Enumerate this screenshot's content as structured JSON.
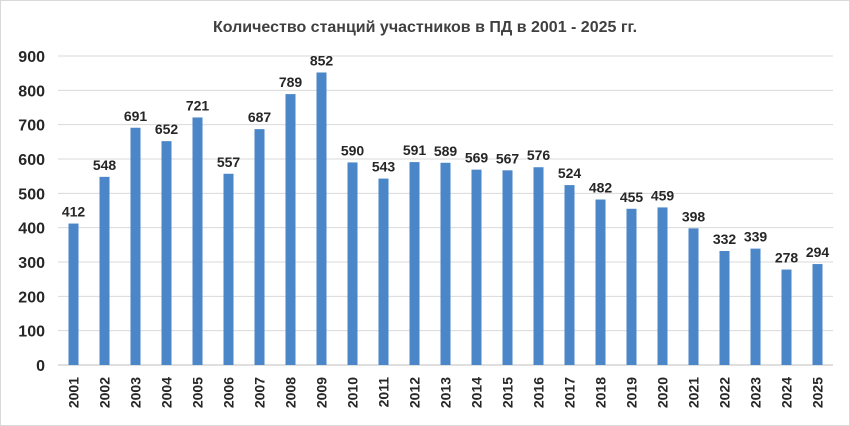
{
  "chart_data": {
    "type": "bar",
    "title": "Количество станций участников в ПД в 2001 - 2025 гг.",
    "xlabel": "",
    "ylabel": "",
    "ylim": [
      0,
      900
    ],
    "yticks": [
      0,
      100,
      200,
      300,
      400,
      500,
      600,
      700,
      800,
      900
    ],
    "grid": true,
    "legend": "none",
    "bar_color": "#4a86c8",
    "categories": [
      "2001",
      "2002",
      "2003",
      "2004",
      "2005",
      "2006",
      "2007",
      "2008",
      "2009",
      "2010",
      "2011",
      "2012",
      "2013",
      "2014",
      "2015",
      "2016",
      "2017",
      "2018",
      "2019",
      "2020",
      "2021",
      "2022",
      "2023",
      "2024",
      "2025"
    ],
    "values": [
      412,
      548,
      691,
      652,
      721,
      557,
      687,
      789,
      852,
      590,
      543,
      591,
      589,
      569,
      567,
      576,
      524,
      482,
      455,
      459,
      398,
      332,
      339,
      278,
      294
    ]
  }
}
